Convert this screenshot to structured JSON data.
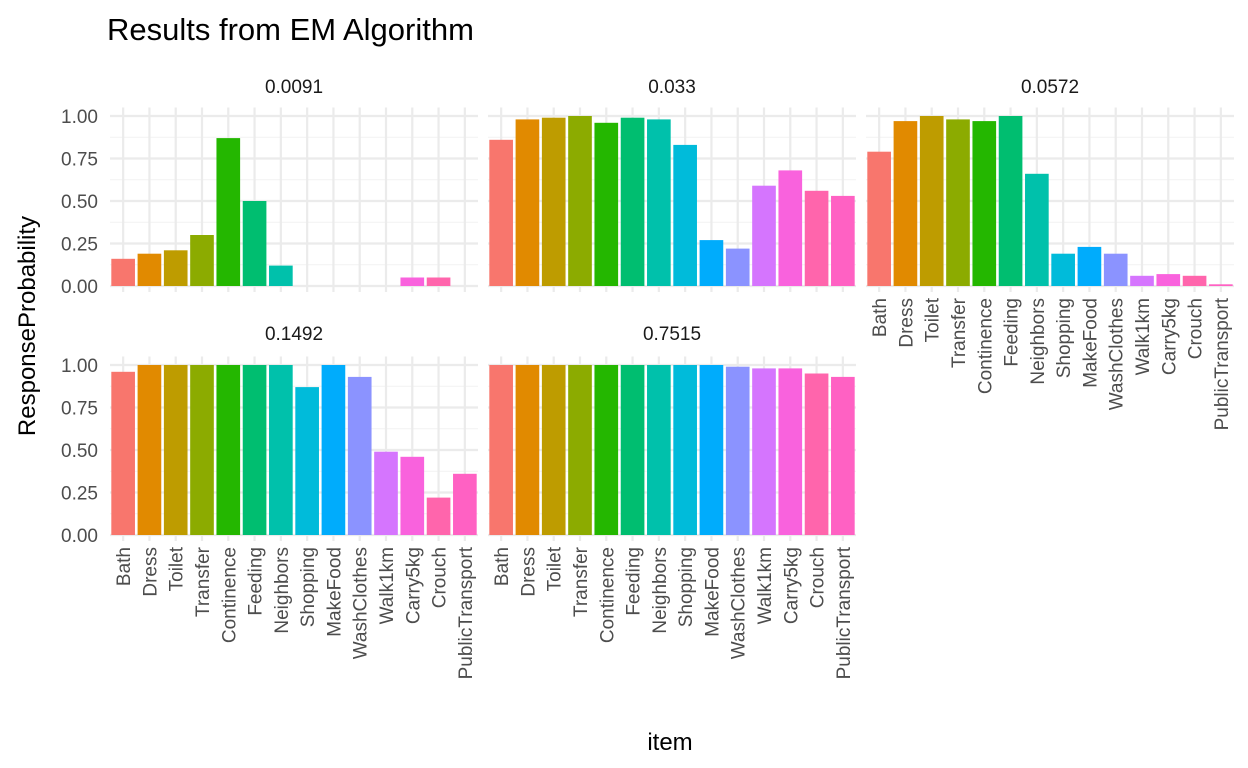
{
  "chart_data": {
    "type": "bar",
    "title": "Results from EM Algorithm",
    "xlabel": "item",
    "ylabel": "ResponseProbability",
    "ylim": [
      0,
      1.05
    ],
    "y_ticks": [
      "0.00",
      "0.25",
      "0.50",
      "0.75",
      "1.00"
    ],
    "grid": true,
    "legend": "none",
    "categories": [
      "Bath",
      "Dress",
      "Toilet",
      "Transfer",
      "Continence",
      "Feeding",
      "Neighbors",
      "Shopping",
      "MakeFood",
      "WashClothes",
      "Walk1km",
      "Carry5kg",
      "Crouch",
      "PublicTransport"
    ],
    "colors": [
      "#F8766D",
      "#E18A00",
      "#BE9C00",
      "#8CAB00",
      "#24B700",
      "#00BE70",
      "#00C1AB",
      "#00BBDA",
      "#00ACFC",
      "#8B93FF",
      "#D575FE",
      "#F962DD",
      "#FF65AC",
      "#FF61C3"
    ],
    "series": [
      {
        "name": "0.0091",
        "values": [
          0.16,
          0.19,
          0.21,
          0.3,
          0.87,
          0.5,
          0.12,
          0.0,
          0.0,
          0.0,
          0.0,
          0.05,
          0.05,
          0.0
        ]
      },
      {
        "name": "0.033",
        "values": [
          0.86,
          0.98,
          0.99,
          1.0,
          0.96,
          0.99,
          0.98,
          0.83,
          0.27,
          0.22,
          0.59,
          0.68,
          0.56,
          0.53
        ]
      },
      {
        "name": "0.0572",
        "values": [
          0.79,
          0.97,
          1.0,
          0.98,
          0.97,
          1.0,
          0.66,
          0.19,
          0.23,
          0.19,
          0.06,
          0.07,
          0.06,
          0.01
        ]
      },
      {
        "name": "0.1492",
        "values": [
          0.96,
          1.0,
          1.0,
          1.0,
          1.0,
          1.0,
          1.0,
          0.87,
          1.0,
          0.93,
          0.49,
          0.46,
          0.22,
          0.36
        ]
      },
      {
        "name": "0.7515",
        "values": [
          1.0,
          1.0,
          1.0,
          1.0,
          1.0,
          1.0,
          1.0,
          1.0,
          1.0,
          0.99,
          0.98,
          0.98,
          0.95,
          0.93
        ]
      }
    ]
  }
}
